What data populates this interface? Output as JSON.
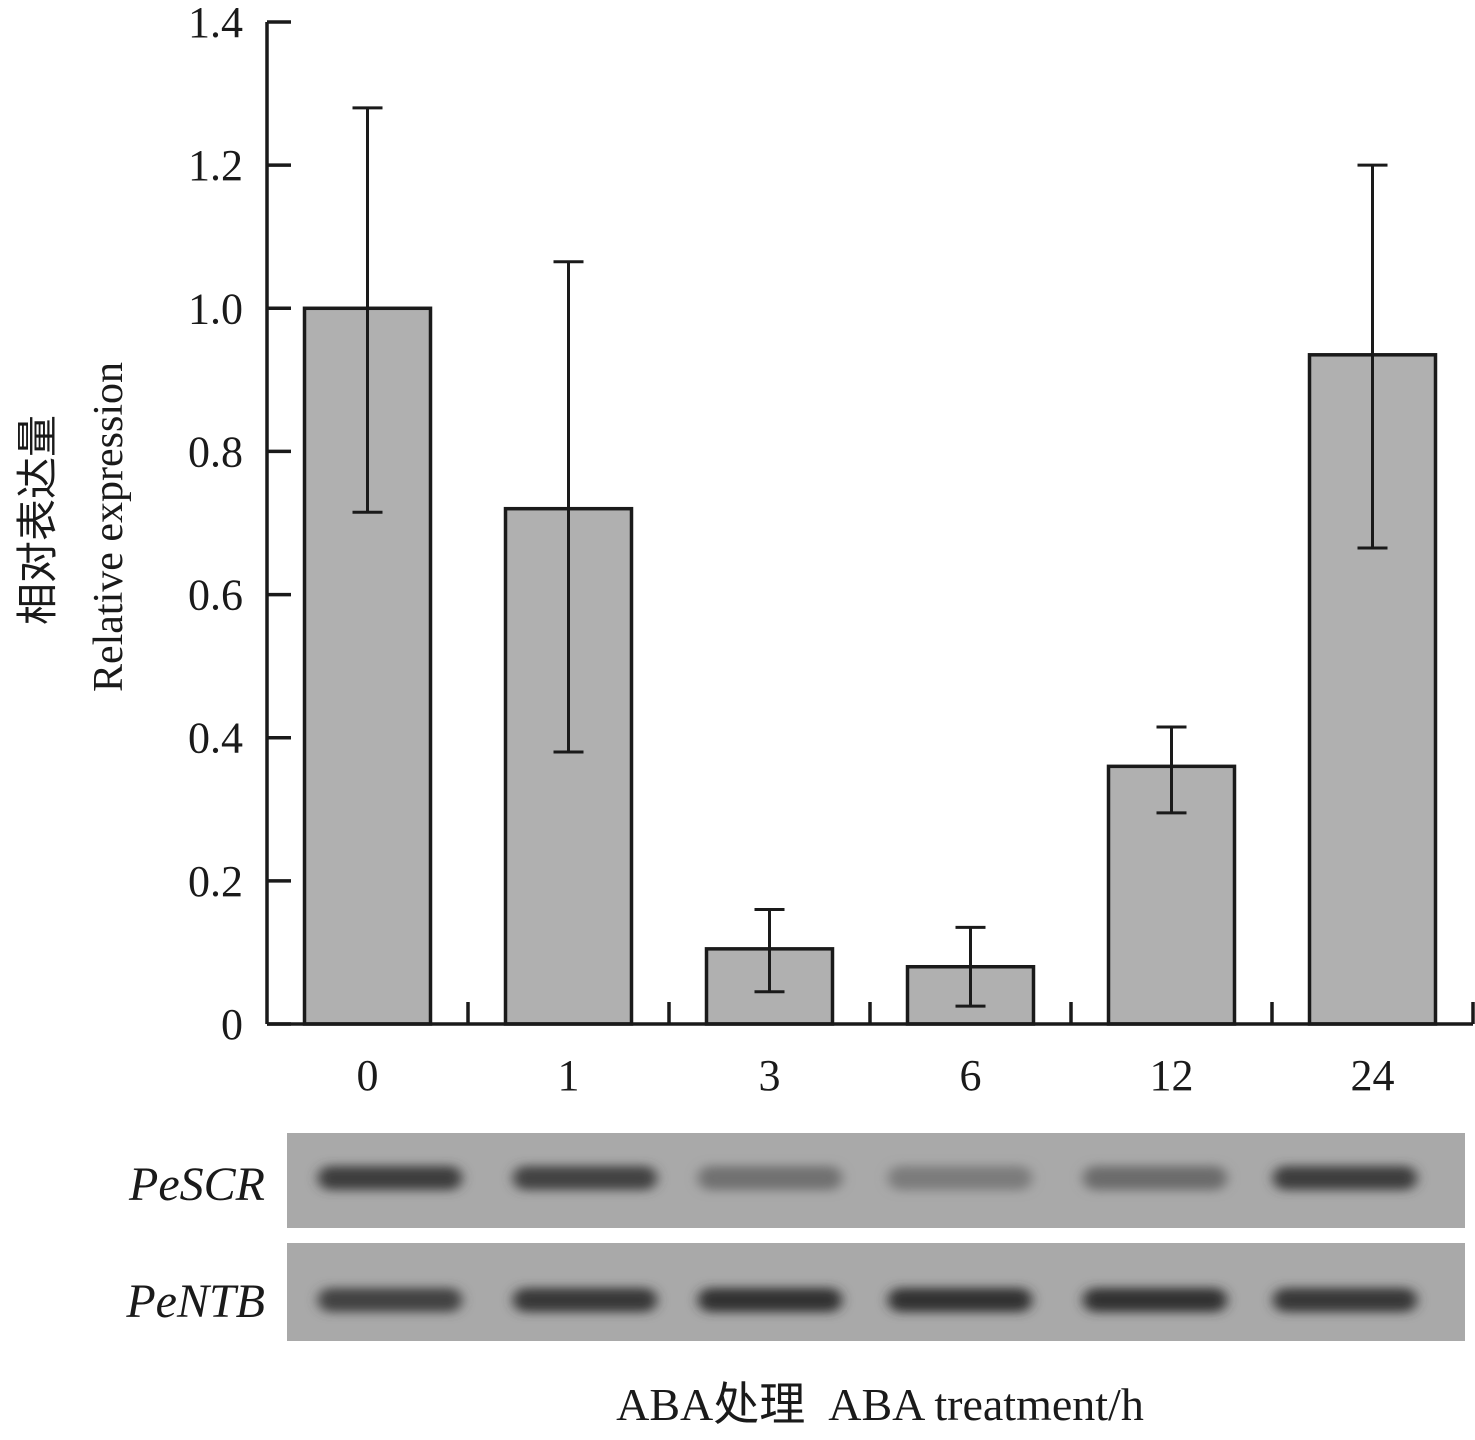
{
  "chart_data": {
    "type": "bar",
    "categories": [
      "0",
      "1",
      "3",
      "6",
      "12",
      "24"
    ],
    "values": [
      1.0,
      0.72,
      0.105,
      0.08,
      0.36,
      0.935
    ],
    "error_low": [
      0.715,
      0.38,
      0.045,
      0.025,
      0.295,
      0.665
    ],
    "error_high": [
      1.28,
      1.065,
      0.16,
      0.135,
      0.415,
      1.2
    ],
    "ylim": [
      0,
      1.4
    ],
    "yticks": [
      "0",
      "0.2",
      "0.4",
      "0.6",
      "0.8",
      "1.0",
      "1.2",
      "1.4"
    ],
    "ytick_values": [
      0,
      0.2,
      0.4,
      0.6,
      0.8,
      1.0,
      1.2,
      1.4
    ],
    "ylabel_cn": "相对表达量",
    "ylabel_en": "Relative expression",
    "xlabel": "ABA处理  ABA treatment/h",
    "bar_color": "#b0b0b0",
    "grid": false
  },
  "gel": {
    "rows": [
      {
        "label": "PeSCR",
        "band_intensity": [
          0.85,
          0.8,
          0.35,
          0.25,
          0.4,
          0.85
        ]
      },
      {
        "label": "PeNTB",
        "band_intensity": [
          0.8,
          0.9,
          0.95,
          0.95,
          0.95,
          0.9
        ]
      }
    ]
  }
}
